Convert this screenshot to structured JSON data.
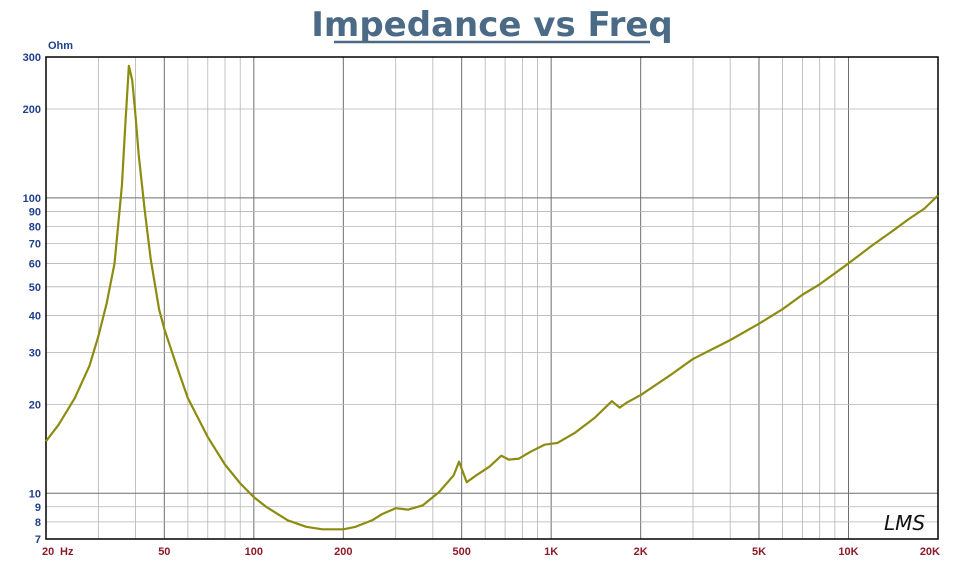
{
  "chart_data": {
    "type": "line",
    "title": "Impedance vs Freq",
    "ylabel": "Ohm",
    "x_unit": "Hz",
    "x_scale": "log",
    "y_scale": "log",
    "xlim": [
      20,
      20000
    ],
    "ylim": [
      7,
      300
    ],
    "grid": true,
    "line_color": "#8c8c10",
    "title_color": "#4a6a85",
    "y_tick_color": "#1f3f8a",
    "x_tick_color": "#8b1a2a",
    "watermark": "LMS",
    "x_ticks": [
      {
        "value": 20,
        "label": "20"
      },
      {
        "value": 50,
        "label": "50"
      },
      {
        "value": 100,
        "label": "100"
      },
      {
        "value": 200,
        "label": "200"
      },
      {
        "value": 500,
        "label": "500"
      },
      {
        "value": 1000,
        "label": "1K"
      },
      {
        "value": 2000,
        "label": "2K"
      },
      {
        "value": 5000,
        "label": "5K"
      },
      {
        "value": 10000,
        "label": "10K"
      },
      {
        "value": 20000,
        "label": "20K"
      }
    ],
    "y_ticks": [
      {
        "value": 300,
        "label": "300"
      },
      {
        "value": 200,
        "label": "200"
      },
      {
        "value": 100,
        "label": "100"
      },
      {
        "value": 90,
        "label": "90"
      },
      {
        "value": 80,
        "label": "80"
      },
      {
        "value": 70,
        "label": "70"
      },
      {
        "value": 60,
        "label": "60"
      },
      {
        "value": 50,
        "label": "50"
      },
      {
        "value": 40,
        "label": "40"
      },
      {
        "value": 30,
        "label": "30"
      },
      {
        "value": 20,
        "label": "20"
      },
      {
        "value": 10,
        "label": "10"
      },
      {
        "value": 9,
        "label": "9"
      },
      {
        "value": 8,
        "label": "8"
      },
      {
        "value": 7,
        "label": "7"
      }
    ],
    "series": [
      {
        "x": [
          20,
          21,
          22,
          25,
          28,
          30,
          32,
          34,
          36,
          37,
          38,
          39,
          40,
          41,
          43,
          45,
          48,
          50,
          55,
          60,
          70,
          80,
          90,
          100,
          110,
          130,
          150,
          170,
          200,
          220,
          250,
          270,
          300,
          330,
          370,
          420,
          470,
          490,
          520,
          560,
          620,
          680,
          720,
          780,
          850,
          950,
          1050,
          1200,
          1400,
          1600,
          1700,
          1800,
          2000,
          2500,
          3000,
          4000,
          5000,
          6000,
          7000,
          8000,
          10000,
          12000,
          14000,
          16000,
          18000,
          20000
        ],
        "y": [
          15,
          16,
          17,
          21,
          27,
          34,
          44,
          60,
          110,
          180,
          280,
          250,
          190,
          140,
          90,
          62,
          42,
          36,
          27,
          21,
          15.5,
          12.5,
          10.8,
          9.7,
          9.0,
          8.1,
          7.7,
          7.55,
          7.55,
          7.7,
          8.1,
          8.5,
          8.9,
          8.8,
          9.1,
          10.1,
          11.5,
          12.8,
          10.9,
          11.5,
          12.3,
          13.4,
          13.0,
          13.1,
          13.8,
          14.6,
          14.8,
          16.0,
          18.0,
          20.5,
          19.5,
          20.3,
          21.5,
          25.0,
          28.5,
          33.0,
          37.5,
          42.0,
          47.0,
          51.0,
          60.0,
          69.0,
          77.0,
          85.0,
          92.0,
          102.0
        ]
      }
    ]
  }
}
